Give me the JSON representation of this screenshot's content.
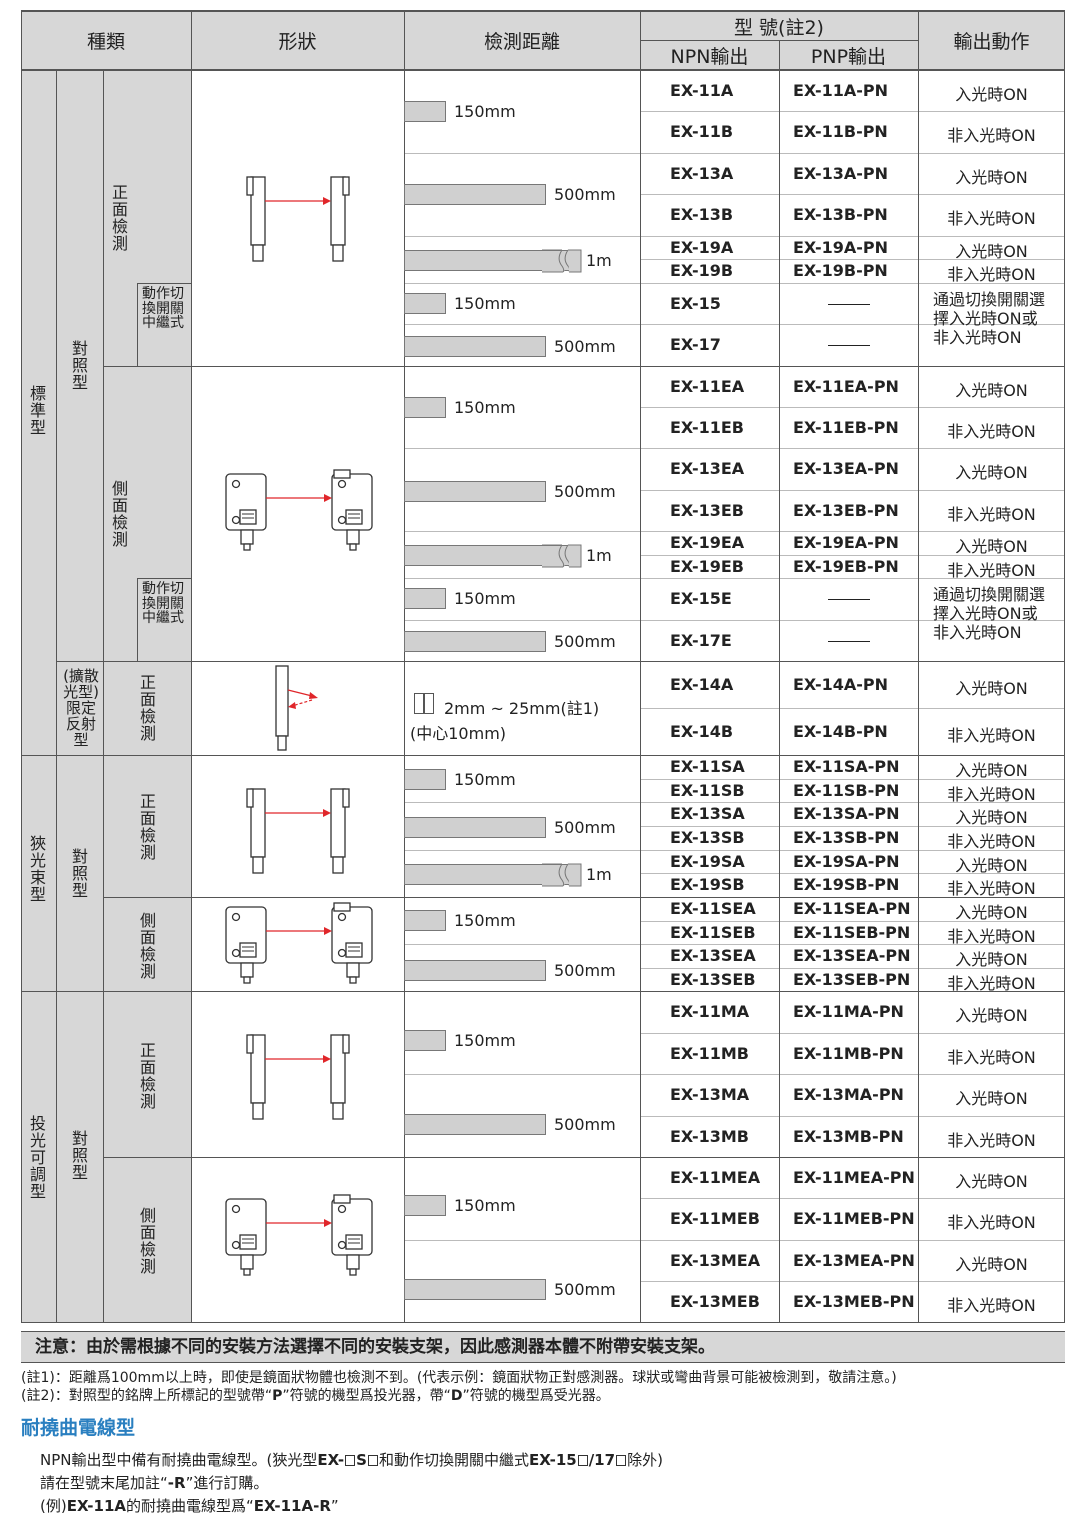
{
  "header": {
    "type": "種類",
    "shape": "形狀",
    "distance": "檢測距離",
    "model": "型 號(註2)",
    "npn": "NPN輸出",
    "pnp": "PNP輸出",
    "action": "輸出動作"
  },
  "categories": {
    "standard": "標準型",
    "narrow": "狹光束型",
    "adjustable": "投光可調型",
    "thru_beam_a": "對照型",
    "thru_beam_b": "對照型",
    "thru_beam_c": "對照型",
    "limited": "(擴散光型)限定反射型",
    "front_1": "正面檢測",
    "side_1": "側面檢測",
    "relay_1": "動作切換開關中繼式",
    "relay_2": "動作切換開關中繼式",
    "front_2": "正面檢測",
    "front_3": "正面檢測",
    "side_3": "側面檢測",
    "front_4": "正面檢測",
    "side_4": "側面檢測"
  },
  "distances": {
    "d150": "150mm",
    "d500": "500mm",
    "d1m": "1m",
    "limited_range": "2mm ~ 25mm(註1)",
    "limited_center": "(中心10mm)"
  },
  "rows": [
    {
      "npn": "EX-11A",
      "pnp": "EX-11A-PN",
      "action": "入光時ON"
    },
    {
      "npn": "EX-11B",
      "pnp": "EX-11B-PN",
      "action": "非入光時ON"
    },
    {
      "npn": "EX-13A",
      "pnp": "EX-13A-PN",
      "action": "入光時ON"
    },
    {
      "npn": "EX-13B",
      "pnp": "EX-13B-PN",
      "action": "非入光時ON"
    },
    {
      "npn": "EX-19A",
      "pnp": "EX-19A-PN",
      "action": "入光時ON"
    },
    {
      "npn": "EX-19B",
      "pnp": "EX-19B-PN",
      "action": "非入光時ON"
    },
    {
      "npn": "EX-15",
      "pnp": "——",
      "action": ""
    },
    {
      "npn": "EX-17",
      "pnp": "——",
      "action": ""
    },
    {
      "npn": "EX-11EA",
      "pnp": "EX-11EA-PN",
      "action": "入光時ON"
    },
    {
      "npn": "EX-11EB",
      "pnp": "EX-11EB-PN",
      "action": "非入光時ON"
    },
    {
      "npn": "EX-13EA",
      "pnp": "EX-13EA-PN",
      "action": "入光時ON"
    },
    {
      "npn": "EX-13EB",
      "pnp": "EX-13EB-PN",
      "action": "非入光時ON"
    },
    {
      "npn": "EX-19EA",
      "pnp": "EX-19EA-PN",
      "action": "入光時ON"
    },
    {
      "npn": "EX-19EB",
      "pnp": "EX-19EB-PN",
      "action": "非入光時ON"
    },
    {
      "npn": "EX-15E",
      "pnp": "——",
      "action": ""
    },
    {
      "npn": "EX-17E",
      "pnp": "——",
      "action": ""
    },
    {
      "npn": "EX-14A",
      "pnp": "EX-14A-PN",
      "action": "入光時ON"
    },
    {
      "npn": "EX-14B",
      "pnp": "EX-14B-PN",
      "action": "非入光時ON"
    },
    {
      "npn": "EX-11SA",
      "pnp": "EX-11SA-PN",
      "action": "入光時ON"
    },
    {
      "npn": "EX-11SB",
      "pnp": "EX-11SB-PN",
      "action": "非入光時ON"
    },
    {
      "npn": "EX-13SA",
      "pnp": "EX-13SA-PN",
      "action": "入光時ON"
    },
    {
      "npn": "EX-13SB",
      "pnp": "EX-13SB-PN",
      "action": "非入光時ON"
    },
    {
      "npn": "EX-19SA",
      "pnp": "EX-19SA-PN",
      "action": "入光時ON"
    },
    {
      "npn": "EX-19SB",
      "pnp": "EX-19SB-PN",
      "action": "非入光時ON"
    },
    {
      "npn": "EX-11SEA",
      "pnp": "EX-11SEA-PN",
      "action": "入光時ON"
    },
    {
      "npn": "EX-11SEB",
      "pnp": "EX-11SEB-PN",
      "action": "非入光時ON"
    },
    {
      "npn": "EX-13SEA",
      "pnp": "EX-13SEA-PN",
      "action": "入光時ON"
    },
    {
      "npn": "EX-13SEB",
      "pnp": "EX-13SEB-PN",
      "action": "非入光時ON"
    },
    {
      "npn": "EX-11MA",
      "pnp": "EX-11MA-PN",
      "action": "入光時ON"
    },
    {
      "npn": "EX-11MB",
      "pnp": "EX-11MB-PN",
      "action": "非入光時ON"
    },
    {
      "npn": "EX-13MA",
      "pnp": "EX-13MA-PN",
      "action": "入光時ON"
    },
    {
      "npn": "EX-13MB",
      "pnp": "EX-13MB-PN",
      "action": "非入光時ON"
    },
    {
      "npn": "EX-11MEA",
      "pnp": "EX-11MEA-PN",
      "action": "入光時ON"
    },
    {
      "npn": "EX-11MEB",
      "pnp": "EX-11MEB-PN",
      "action": "非入光時ON"
    },
    {
      "npn": "EX-13MEA",
      "pnp": "EX-13MEA-PN",
      "action": "入光時ON"
    },
    {
      "npn": "EX-13MEB",
      "pnp": "EX-13MEB-PN",
      "action": "非入光時ON"
    }
  ],
  "switch_action": [
    "通過切換開關選",
    "擇入光時ON或",
    "非入光時ON"
  ],
  "notice": "注意：由於需根據不同的安裝方法選擇不同的安裝支架，因此感測器本體不附帶安裝支架。",
  "footnotes": {
    "n1": "(註1)：距離爲100mm以上時，即使是鏡面狀物體也檢測不到。(代表示例：鏡面狀物正對感測器。球狀或彎曲背景可能被檢測到，敬請注意。)",
    "n2_a": "(註2)：對照型的銘牌上所標記的型號帶“",
    "n2_b": "P",
    "n2_c": "”符號的機型爲投光器，帶“",
    "n2_d": "D",
    "n2_e": "”符號的機型爲受光器。"
  },
  "flex": {
    "title": "耐撓曲電線型",
    "l1_a": "NPN輸出型中備有耐撓曲電線型。(狹光型",
    "l1_b": "EX-",
    "l1_c": "S",
    "l1_d": "和動作切換開關中繼式",
    "l1_e": "EX-15",
    "l1_f": "/17",
    "l1_g": "除外)",
    "l2_a": "請在型號末尾加註“",
    "l2_b": "-R",
    "l2_c": "”進行訂購。",
    "l3_a": "(例)",
    "l3_b": "EX-11A",
    "l3_c": "的耐撓曲電線型爲“",
    "l3_d": "EX-11A-R",
    "l3_e": "”"
  },
  "colors": {
    "header_bg": "#d7d7d7",
    "arrow": "#e0262a",
    "accent": "#2a7fc0"
  }
}
